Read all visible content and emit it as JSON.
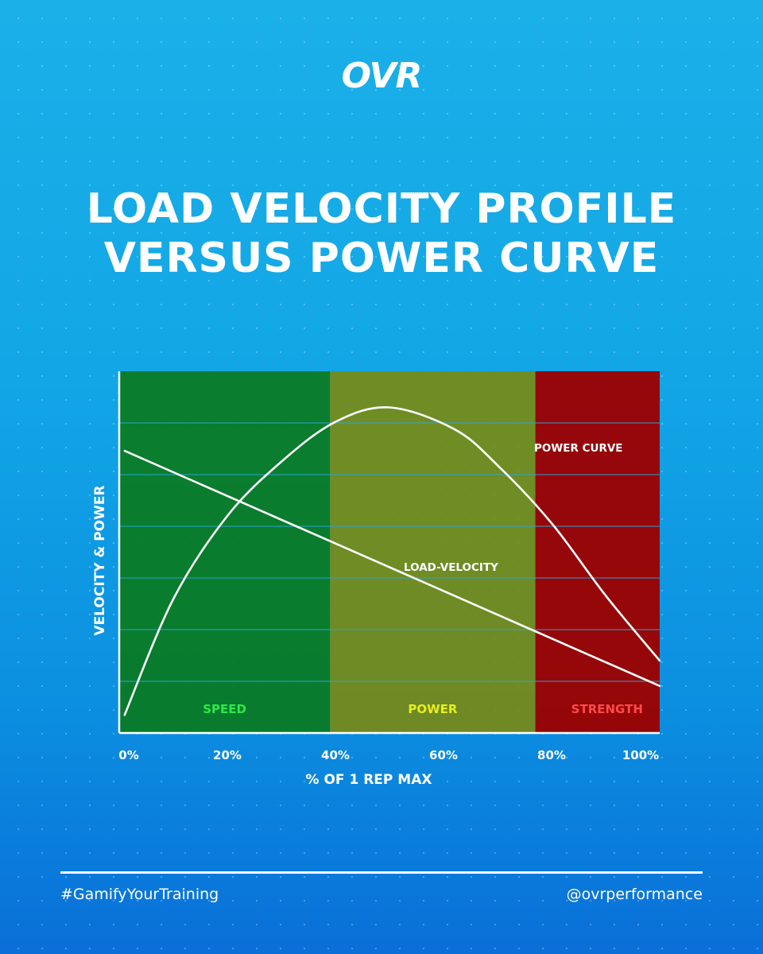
{
  "logo": "OVR",
  "title_lines": [
    "LOAD VELOCITY PROFILE",
    "VERSUS POWER CURVE"
  ],
  "footer": {
    "hashtag": "#GamifyYourTraining",
    "handle": "@ovrperformance"
  },
  "colors": {
    "speed_zone": "#0a7a1e",
    "power_zone": "#7d8a0a",
    "strength_zone": "#9a0202",
    "speed_label": "#2ee84a",
    "power_label": "#e6ef1a",
    "strength_label": "#ff4a4a",
    "line": "#ffffff"
  },
  "chart_data": {
    "type": "line",
    "title": "",
    "xlabel": "% OF 1 REP MAX",
    "ylabel": "VELOCITY & POWER",
    "xlim": [
      0,
      100
    ],
    "ylim": [
      0,
      100
    ],
    "x_ticks": [
      0,
      20,
      40,
      60,
      80,
      100
    ],
    "x_tick_labels": [
      "0%",
      "20%",
      "40%",
      "60%",
      "80%",
      "100%"
    ],
    "grid": true,
    "zones": [
      {
        "label": "SPEED",
        "from": 0,
        "to": 39
      },
      {
        "label": "POWER",
        "from": 39,
        "to": 77
      },
      {
        "label": "STRENGTH",
        "from": 77,
        "to": 100
      }
    ],
    "series": [
      {
        "name": "POWER CURVE",
        "x": [
          1,
          10,
          20,
          30,
          40,
          50,
          62,
          70,
          80,
          90,
          100
        ],
        "y": [
          5,
          37,
          60,
          75,
          86,
          90,
          84,
          74,
          58,
          38,
          20
        ]
      },
      {
        "name": "LOAD-VELOCITY",
        "x": [
          1,
          100
        ],
        "y": [
          78,
          13
        ]
      }
    ]
  }
}
